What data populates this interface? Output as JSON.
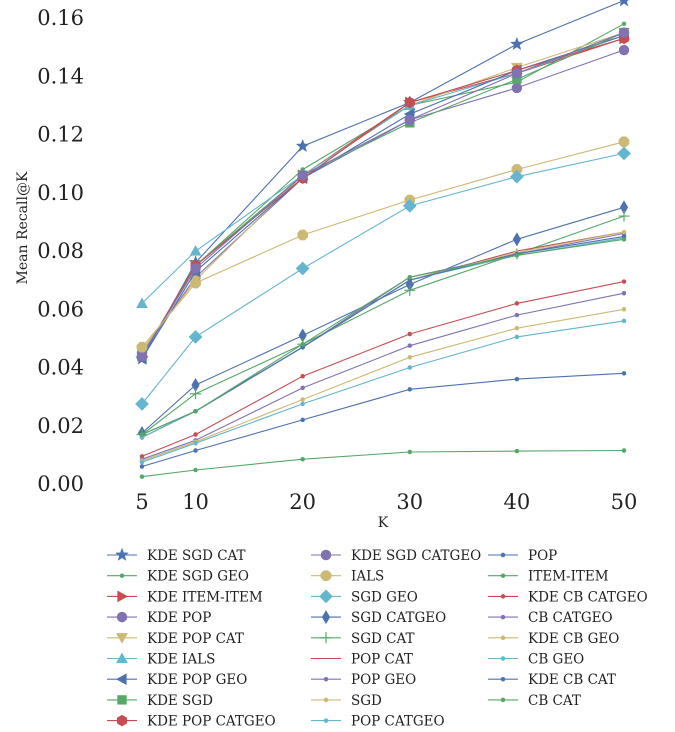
{
  "chart_data": {
    "type": "line",
    "xlabel": "K",
    "ylabel": "Mean Recall@K",
    "x": [
      5,
      10,
      20,
      30,
      40,
      50
    ],
    "x_ticks": [
      "5",
      "10",
      "20",
      "30",
      "40",
      "50"
    ],
    "y_ticks": [
      "0.00",
      "0.02",
      "0.04",
      "0.06",
      "0.08",
      "0.10",
      "0.12",
      "0.14",
      "0.16"
    ],
    "ylim": [
      0,
      0.16
    ],
    "grid": false,
    "legend_position": "below",
    "series": [
      {
        "name": "KDE SGD CAT",
        "color": "#4C72B0",
        "marker": "star",
        "values": [
          0.043,
          0.076,
          0.116,
          0.131,
          0.151,
          0.166
        ]
      },
      {
        "name": "KDE SGD GEO",
        "color": "#55A868",
        "marker": "dot",
        "values": [
          0.044,
          0.075,
          0.108,
          0.13,
          0.138,
          0.158
        ]
      },
      {
        "name": "KDE ITEM-ITEM",
        "color": "#C44E52",
        "marker": "triangle-right",
        "values": [
          0.044,
          0.075,
          0.106,
          0.131,
          0.141,
          0.153
        ]
      },
      {
        "name": "KDE POP",
        "color": "#8172B2",
        "marker": "circle",
        "values": [
          0.045,
          0.071,
          0.105,
          0.125,
          0.136,
          0.149
        ]
      },
      {
        "name": "KDE POP CAT",
        "color": "#CCB974",
        "marker": "triangle-down",
        "values": [
          0.046,
          0.07,
          0.106,
          0.13,
          0.143,
          0.155
        ]
      },
      {
        "name": "KDE IALS",
        "color": "#64B5CD",
        "marker": "triangle-up",
        "values": [
          0.062,
          0.08,
          0.106,
          0.13,
          0.141,
          0.154
        ]
      },
      {
        "name": "KDE POP GEO",
        "color": "#4C72B0",
        "marker": "triangle-left",
        "values": [
          0.043,
          0.073,
          0.105,
          0.127,
          0.142,
          0.154
        ]
      },
      {
        "name": "KDE SGD",
        "color": "#55A868",
        "marker": "square",
        "values": [
          0.044,
          0.075,
          0.106,
          0.124,
          0.139,
          0.155
        ]
      },
      {
        "name": "KDE POP CATGEO",
        "color": "#C44E52",
        "marker": "hexagon",
        "values": [
          0.044,
          0.075,
          0.105,
          0.131,
          0.142,
          0.153
        ]
      },
      {
        "name": "KDE SGD CATGEO",
        "color": "#8172B2",
        "marker": "circle",
        "values": [
          0.044,
          0.074,
          0.106,
          0.125,
          0.141,
          0.155
        ]
      },
      {
        "name": "IALS",
        "color": "#CCB974",
        "marker": "octagon",
        "values": [
          0.047,
          0.069,
          0.0855,
          0.0975,
          0.108,
          0.1175
        ]
      },
      {
        "name": "SGD GEO",
        "color": "#64B5CD",
        "marker": "diamond",
        "values": [
          0.0275,
          0.0505,
          0.074,
          0.0955,
          0.1055,
          0.1135
        ]
      },
      {
        "name": "SGD CATGEO",
        "color": "#4C72B0",
        "marker": "thin-diamond",
        "values": [
          0.0175,
          0.034,
          0.051,
          0.0685,
          0.084,
          0.095
        ]
      },
      {
        "name": "SGD CAT",
        "color": "#55A868",
        "marker": "plus",
        "values": [
          0.017,
          0.031,
          0.048,
          0.0665,
          0.079,
          0.092
        ]
      },
      {
        "name": "POP CAT",
        "color": "#C44E52",
        "marker": "none",
        "values": [
          0.016,
          0.025,
          0.047,
          0.07,
          0.08,
          0.0865
        ]
      },
      {
        "name": "POP GEO",
        "color": "#8172B2",
        "marker": "dot",
        "values": [
          0.016,
          0.025,
          0.047,
          0.071,
          0.079,
          0.086
        ]
      },
      {
        "name": "SGD",
        "color": "#CCB974",
        "marker": "dot",
        "values": [
          0.016,
          0.025,
          0.047,
          0.07,
          0.0795,
          0.0865
        ]
      },
      {
        "name": "POP CATGEO",
        "color": "#64B5CD",
        "marker": "dot",
        "values": [
          0.016,
          0.025,
          0.047,
          0.07,
          0.0785,
          0.0845
        ]
      },
      {
        "name": "POP",
        "color": "#4C72B0",
        "marker": "dot",
        "values": [
          0.017,
          0.025,
          0.047,
          0.07,
          0.079,
          0.085
        ]
      },
      {
        "name": "ITEM-ITEM",
        "color": "#55A868",
        "marker": "dot",
        "values": [
          0.017,
          0.025,
          0.048,
          0.071,
          0.0785,
          0.084
        ]
      },
      {
        "name": "KDE CB CATGEO",
        "color": "#C44E52",
        "marker": "dot",
        "values": [
          0.0095,
          0.017,
          0.037,
          0.0515,
          0.062,
          0.0695
        ]
      },
      {
        "name": "CB CATGEO",
        "color": "#8172B2",
        "marker": "dot",
        "values": [
          0.0085,
          0.015,
          0.033,
          0.0475,
          0.058,
          0.0655
        ]
      },
      {
        "name": "KDE CB GEO",
        "color": "#CCB974",
        "marker": "dot",
        "values": [
          0.008,
          0.0145,
          0.029,
          0.0435,
          0.0535,
          0.06
        ]
      },
      {
        "name": "CB GEO",
        "color": "#64B5CD",
        "marker": "dot",
        "values": [
          0.0075,
          0.014,
          0.0275,
          0.04,
          0.0505,
          0.056
        ]
      },
      {
        "name": "KDE CB CAT",
        "color": "#4C72B0",
        "marker": "dot",
        "values": [
          0.006,
          0.0115,
          0.022,
          0.0325,
          0.036,
          0.038
        ]
      },
      {
        "name": "CB CAT",
        "color": "#55A868",
        "marker": "dot",
        "values": [
          0.0025,
          0.0048,
          0.0085,
          0.011,
          0.0113,
          0.0115
        ]
      }
    ]
  }
}
